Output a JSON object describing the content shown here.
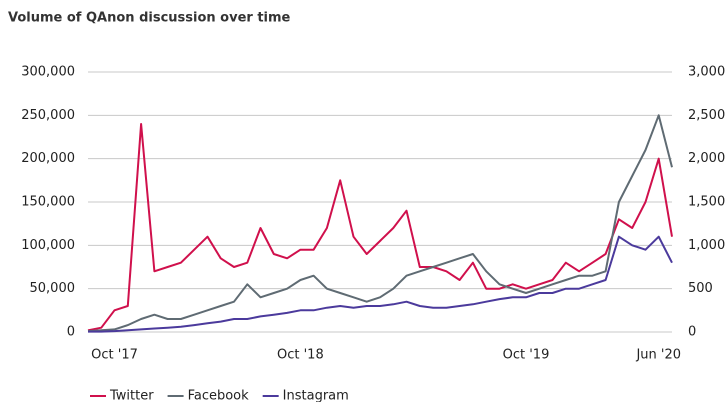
{
  "chart_data": {
    "type": "line",
    "title": "Volume of QAnon discussion over time",
    "categories": [
      null,
      null,
      "Oct '17",
      null,
      null,
      null,
      null,
      null,
      null,
      null,
      null,
      null,
      null,
      null,
      null,
      null,
      "Oct '18",
      null,
      null,
      null,
      null,
      null,
      null,
      null,
      null,
      null,
      null,
      null,
      null,
      null,
      null,
      null,
      null,
      "Oct '19",
      null,
      null,
      null,
      null,
      null,
      null,
      null,
      null,
      null,
      "Jun '20",
      null
    ],
    "series": [
      {
        "name": "Twitter",
        "color": "#d0104c",
        "values": [
          2000,
          5000,
          25000,
          30000,
          240000,
          70000,
          75000,
          80000,
          95000,
          110000,
          85000,
          75000,
          80000,
          120000,
          90000,
          85000,
          95000,
          95000,
          120000,
          175000,
          110000,
          90000,
          105000,
          120000,
          140000,
          75000,
          75000,
          70000,
          60000,
          80000,
          50000,
          50000,
          55000,
          50000,
          55000,
          60000,
          80000,
          70000,
          80000,
          90000,
          130000,
          120000,
          150000,
          200000,
          110000
        ]
      },
      {
        "name": "Facebook",
        "color": "#5f6b73",
        "axis": "y2",
        "values": [
          10,
          20,
          30,
          80,
          150,
          200,
          150,
          150,
          200,
          250,
          300,
          350,
          550,
          400,
          450,
          500,
          600,
          650,
          500,
          450,
          400,
          350,
          400,
          500,
          650,
          700,
          750,
          800,
          850,
          900,
          700,
          550,
          500,
          450,
          500,
          550,
          600,
          650,
          650,
          700,
          1500,
          1800,
          2100,
          2500,
          1900
        ]
      },
      {
        "name": "Instagram",
        "color": "#4b3a9c",
        "axis": "y2",
        "values": [
          5,
          5,
          10,
          20,
          30,
          40,
          50,
          60,
          80,
          100,
          120,
          150,
          150,
          180,
          200,
          220,
          250,
          250,
          280,
          300,
          280,
          300,
          300,
          320,
          350,
          300,
          280,
          280,
          300,
          320,
          350,
          380,
          400,
          400,
          450,
          450,
          500,
          500,
          550,
          600,
          1100,
          1000,
          950,
          1100,
          800
        ]
      }
    ],
    "ylim": [
      0,
      300000
    ],
    "yticks": [
      0,
      {
        "value": 50000,
        "label": "50,000"
      },
      {
        "value": 100000,
        "label": "100,000"
      },
      {
        "value": 150000,
        "label": "150,000"
      },
      {
        "value": 200000,
        "label": "200,000"
      },
      {
        "value": 250000,
        "label": "250,000"
      },
      {
        "value": 300000,
        "label": "300,000"
      }
    ],
    "y2lim": [
      0,
      3000
    ],
    "y2ticks": [
      0,
      500,
      {
        "value": 1000,
        "label": "1,000"
      },
      {
        "value": 1500,
        "label": "1,500"
      },
      {
        "value": 2000,
        "label": "2,000"
      },
      {
        "value": 2500,
        "label": "2,500"
      },
      {
        "value": 3000,
        "label": "3,000"
      }
    ],
    "grid": true
  }
}
